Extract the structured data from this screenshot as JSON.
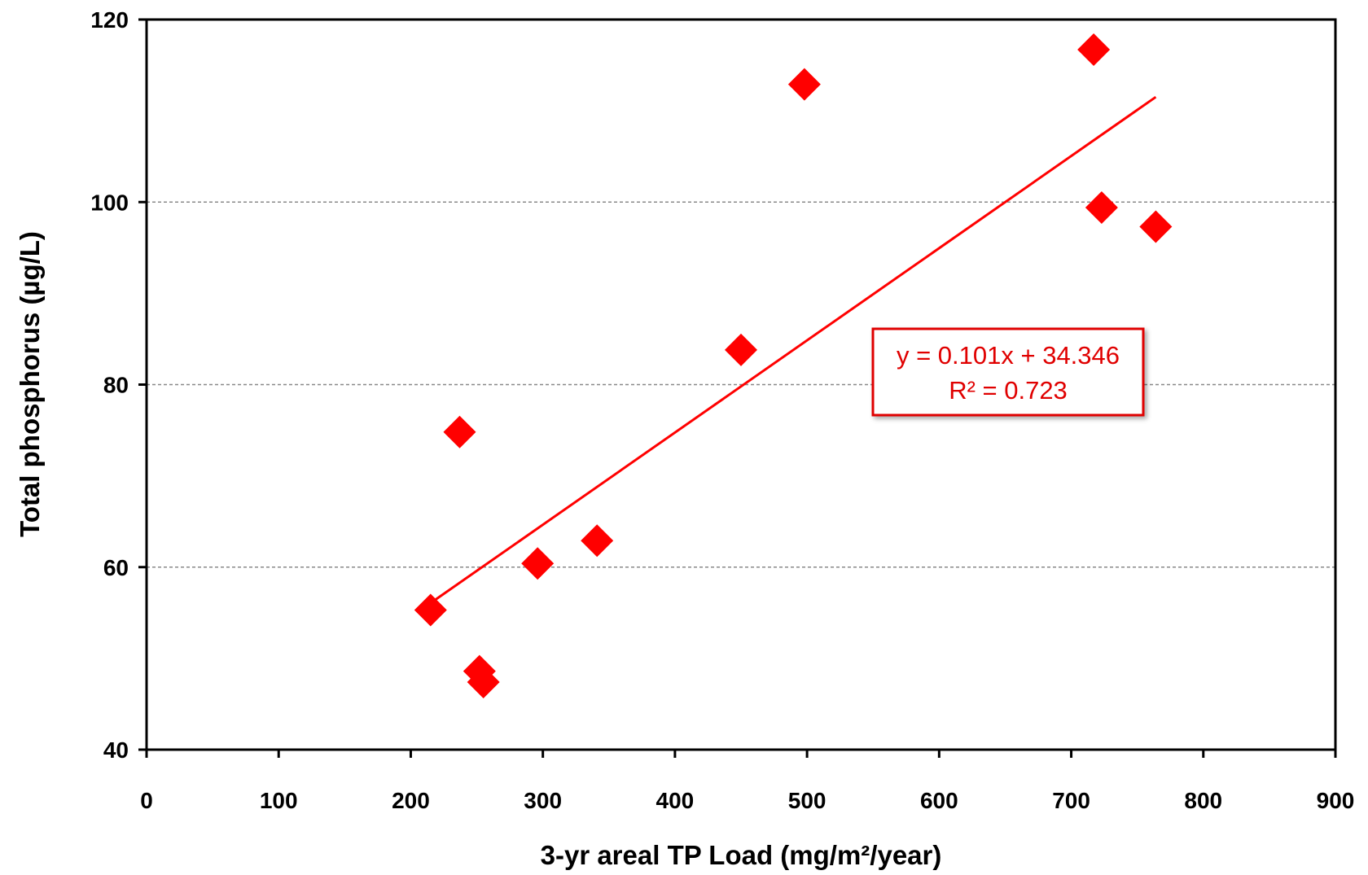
{
  "chart_data": {
    "type": "scatter",
    "xlabel": "3-yr areal TP Load (mg/m²/year)",
    "ylabel": "Total phosphorus (µg/L)",
    "xlim": [
      0,
      900
    ],
    "ylim": [
      40,
      120
    ],
    "x_ticks": [
      "0",
      "100",
      "200",
      "300",
      "400",
      "500",
      "600",
      "700",
      "800",
      "900"
    ],
    "y_ticks": [
      "40",
      "60",
      "80",
      "100",
      "120"
    ],
    "grid": "horizontal dashed",
    "marker": "diamond",
    "color": "#ff0000",
    "series": [
      {
        "points": [
          {
            "x": 215,
            "y": 55.3
          },
          {
            "x": 237,
            "y": 74.8
          },
          {
            "x": 252,
            "y": 48.6
          },
          {
            "x": 255,
            "y": 47.4
          },
          {
            "x": 296,
            "y": 60.4
          },
          {
            "x": 341,
            "y": 62.9
          },
          {
            "x": 450,
            "y": 83.8
          },
          {
            "x": 498,
            "y": 112.9
          },
          {
            "x": 717,
            "y": 116.7
          },
          {
            "x": 723,
            "y": 99.4
          },
          {
            "x": 764,
            "y": 97.3
          }
        ]
      }
    ],
    "trendline": {
      "slope": 0.101,
      "intercept": 34.346,
      "x_range": [
        215,
        764
      ],
      "color": "#ff0000"
    },
    "annotation": {
      "line1": "y = 0.101x + 34.346",
      "line2": "R² = 0.723"
    }
  }
}
